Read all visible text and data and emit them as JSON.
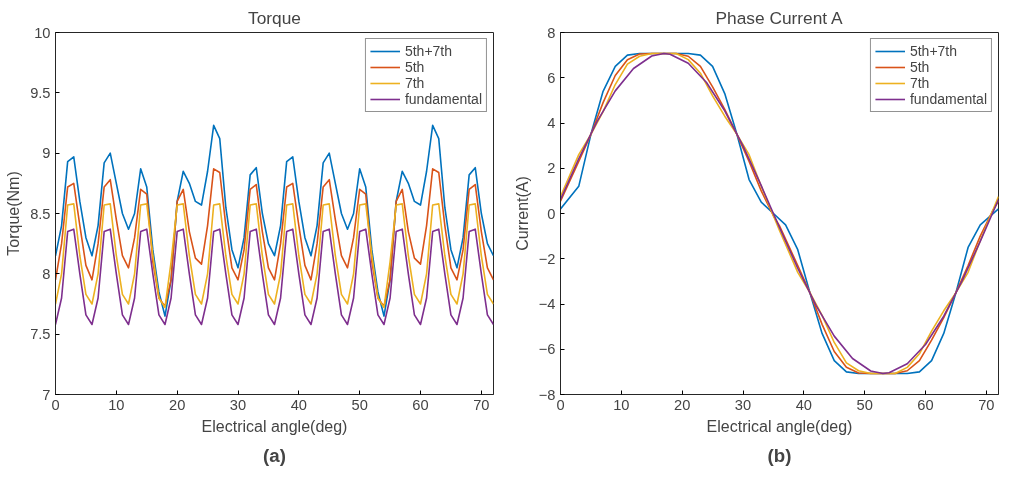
{
  "chart_data": [
    {
      "type": "line",
      "title": "Torque",
      "xlabel": "Electrical angle(deg)",
      "ylabel": "Torque(Nm)",
      "annotations": [
        "(a)"
      ],
      "legend": "top right",
      "xlim": [
        0,
        72
      ],
      "ylim": [
        7,
        10
      ],
      "xticks": [
        0,
        10,
        20,
        30,
        40,
        50,
        60,
        70
      ],
      "yticks": [
        7,
        7.5,
        8,
        8.5,
        9,
        9.5,
        10
      ],
      "x": [
        0,
        1,
        2,
        3,
        4,
        5,
        6,
        7,
        8,
        9,
        10,
        11,
        12,
        13,
        14,
        15,
        16,
        17,
        18,
        19,
        20,
        21,
        22,
        23,
        24,
        25,
        26,
        27,
        28,
        29,
        30,
        31,
        32,
        33,
        34,
        35,
        36,
        37,
        38,
        39,
        40,
        41,
        42,
        43,
        44,
        45,
        46,
        47,
        48,
        49,
        50,
        51,
        52,
        53,
        54,
        55,
        56,
        57,
        58,
        59,
        60,
        61,
        62,
        63,
        64,
        65,
        66,
        67,
        68,
        69,
        70,
        71,
        72
      ],
      "series": [
        {
          "name": "5th+7th",
          "color": "#0072bd",
          "values": [
            8.15,
            8.4,
            8.93,
            8.97,
            8.6,
            8.3,
            8.15,
            8.4,
            8.92,
            9.0,
            8.75,
            8.5,
            8.37,
            8.5,
            8.87,
            8.72,
            8.2,
            7.85,
            7.65,
            7.95,
            8.6,
            8.85,
            8.75,
            8.6,
            8.57,
            8.85,
            9.23,
            9.12,
            8.55,
            8.2,
            8.05,
            8.3,
            8.82,
            8.88,
            8.5,
            8.25,
            8.15,
            8.4,
            8.93,
            8.97,
            8.6,
            8.3,
            8.15,
            8.4,
            8.92,
            9.0,
            8.75,
            8.5,
            8.37,
            8.5,
            8.87,
            8.72,
            8.2,
            7.85,
            7.65,
            7.95,
            8.6,
            8.85,
            8.75,
            8.6,
            8.57,
            8.85,
            9.23,
            9.12,
            8.55,
            8.2,
            8.05,
            8.3,
            8.82,
            8.88,
            8.5,
            8.25,
            8.15
          ]
        },
        {
          "name": "5th",
          "color": "#d95319",
          "values": [
            7.95,
            8.25,
            8.72,
            8.75,
            8.4,
            8.07,
            7.95,
            8.25,
            8.72,
            8.78,
            8.45,
            8.15,
            8.05,
            8.3,
            8.7,
            8.66,
            8.1,
            7.8,
            7.73,
            7.95,
            8.6,
            8.7,
            8.35,
            8.13,
            8.08,
            8.4,
            8.87,
            8.84,
            8.4,
            8.05,
            7.95,
            8.2,
            8.7,
            8.74,
            8.35,
            8.05,
            7.95,
            8.25,
            8.72,
            8.75,
            8.4,
            8.07,
            7.95,
            8.25,
            8.72,
            8.78,
            8.45,
            8.15,
            8.05,
            8.3,
            8.7,
            8.66,
            8.1,
            7.8,
            7.73,
            7.95,
            8.6,
            8.7,
            8.35,
            8.13,
            8.08,
            8.4,
            8.87,
            8.84,
            8.4,
            8.05,
            7.95,
            8.2,
            8.7,
            8.74,
            8.35,
            8.05,
            7.95
          ]
        },
        {
          "name": "7th",
          "color": "#edb120",
          "values": [
            7.75,
            8.0,
            8.57,
            8.58,
            8.15,
            7.83,
            7.75,
            8.0,
            8.57,
            8.58,
            8.15,
            7.83,
            7.75,
            8.0,
            8.57,
            8.58,
            8.15,
            7.8,
            7.72,
            8.1,
            8.57,
            8.58,
            8.15,
            7.83,
            7.75,
            8.0,
            8.57,
            8.58,
            8.15,
            7.83,
            7.75,
            8.0,
            8.57,
            8.58,
            8.15,
            7.83,
            7.75,
            8.0,
            8.57,
            8.58,
            8.15,
            7.83,
            7.75,
            8.0,
            8.57,
            8.58,
            8.15,
            7.83,
            7.75,
            8.0,
            8.57,
            8.58,
            8.15,
            7.8,
            7.72,
            8.1,
            8.57,
            8.58,
            8.15,
            7.83,
            7.75,
            8.0,
            8.57,
            8.58,
            8.15,
            7.83,
            7.75,
            8.0,
            8.57,
            8.58,
            8.15,
            7.83,
            7.75
          ]
        },
        {
          "name": "fundamental",
          "color": "#7e2f8e",
          "values": [
            7.58,
            7.8,
            8.35,
            8.37,
            8.0,
            7.66,
            7.58,
            7.8,
            8.35,
            8.37,
            8.0,
            7.66,
            7.58,
            7.8,
            8.35,
            8.37,
            8.0,
            7.66,
            7.58,
            7.8,
            8.35,
            8.37,
            8.0,
            7.66,
            7.58,
            7.8,
            8.35,
            8.37,
            8.0,
            7.66,
            7.58,
            7.8,
            8.35,
            8.37,
            8.0,
            7.66,
            7.58,
            7.8,
            8.35,
            8.37,
            8.0,
            7.66,
            7.58,
            7.8,
            8.35,
            8.37,
            8.0,
            7.66,
            7.58,
            7.8,
            8.35,
            8.37,
            8.0,
            7.66,
            7.58,
            7.8,
            8.35,
            8.37,
            8.0,
            7.66,
            7.58,
            7.8,
            8.35,
            8.37,
            8.0,
            7.66,
            7.58,
            7.8,
            8.35,
            8.37,
            8.0,
            7.66,
            7.58
          ]
        }
      ]
    },
    {
      "type": "line",
      "title": "Phase Current A",
      "xlabel": "Electrical angle(deg)",
      "ylabel": "Current(A)",
      "annotations": [
        "(b)"
      ],
      "legend": "top right",
      "xlim": [
        0,
        72
      ],
      "ylim": [
        -8,
        8
      ],
      "xticks": [
        0,
        10,
        20,
        30,
        40,
        50,
        60,
        70
      ],
      "yticks": [
        -8,
        -6,
        -4,
        -2,
        0,
        2,
        4,
        6,
        8
      ],
      "series": [
        {
          "name": "5th+7th",
          "color": "#0072bd",
          "x": [
            0,
            3,
            5,
            7,
            9,
            11,
            13,
            17,
            21,
            23,
            25,
            27,
            29,
            31,
            33,
            35,
            37,
            39,
            41,
            43,
            45,
            47,
            49,
            53,
            57,
            59,
            61,
            63,
            65,
            67,
            69,
            72
          ],
          "values": [
            0.2,
            1.2,
            3.5,
            5.4,
            6.5,
            7.0,
            7.07,
            7.07,
            7.07,
            7.0,
            6.5,
            5.3,
            3.5,
            1.5,
            0.5,
            0.0,
            -0.5,
            -1.6,
            -3.5,
            -5.3,
            -6.5,
            -7.0,
            -7.07,
            -7.07,
            -7.07,
            -7.0,
            -6.5,
            -5.3,
            -3.5,
            -1.5,
            -0.5,
            0.2
          ]
        },
        {
          "name": "5th",
          "color": "#d95319",
          "x": [
            0,
            3,
            5,
            7,
            9,
            11,
            13,
            15,
            17,
            19,
            21,
            23,
            25,
            27,
            29,
            31,
            33,
            35,
            36,
            39,
            41,
            43,
            45,
            47,
            49,
            51,
            53,
            55,
            57,
            59,
            61,
            63,
            65,
            67,
            69,
            71,
            72
          ],
          "values": [
            0.55,
            2.3,
            3.5,
            4.9,
            6.1,
            6.8,
            7.05,
            7.07,
            7.07,
            7.07,
            6.95,
            6.5,
            5.6,
            4.6,
            3.5,
            2.3,
            1.0,
            -0.1,
            -0.55,
            -2.3,
            -3.5,
            -4.9,
            -6.1,
            -6.8,
            -7.05,
            -7.07,
            -7.07,
            -7.07,
            -6.95,
            -6.5,
            -5.6,
            -4.6,
            -3.5,
            -2.3,
            -1.0,
            0.1,
            0.55
          ]
        },
        {
          "name": "7th",
          "color": "#edb120",
          "x": [
            0,
            3,
            5,
            7,
            9,
            11,
            13,
            15,
            17,
            19,
            21,
            23,
            25,
            27,
            29,
            31,
            33,
            35,
            36,
            39,
            41,
            43,
            45,
            47,
            49,
            51,
            53,
            55,
            57,
            59,
            61,
            63,
            65,
            67,
            69,
            71,
            72
          ],
          "values": [
            0.75,
            2.6,
            3.5,
            4.5,
            5.7,
            6.6,
            6.95,
            7.07,
            7.07,
            7.07,
            6.8,
            6.2,
            5.2,
            4.3,
            3.5,
            2.6,
            1.2,
            -0.1,
            -0.75,
            -2.6,
            -3.5,
            -4.5,
            -5.7,
            -6.6,
            -6.95,
            -7.07,
            -7.07,
            -7.07,
            -6.8,
            -6.2,
            -5.2,
            -4.3,
            -3.5,
            -2.6,
            -1.2,
            0.1,
            0.75
          ]
        },
        {
          "name": "fundamental",
          "color": "#7e2f8e",
          "x": [
            0,
            3,
            6,
            9,
            12,
            15,
            17,
            18,
            21,
            24,
            27,
            30,
            33,
            36,
            39,
            42,
            45,
            48,
            51,
            53,
            54,
            57,
            60,
            63,
            66,
            69,
            72
          ],
          "values": [
            0.62,
            2.42,
            4.06,
            5.42,
            6.41,
            6.96,
            7.07,
            7.04,
            6.64,
            5.79,
            4.54,
            2.99,
            1.23,
            -0.62,
            -2.42,
            -4.06,
            -5.42,
            -6.41,
            -6.96,
            -7.07,
            -7.04,
            -6.64,
            -5.79,
            -4.54,
            -2.99,
            -1.23,
            0.62
          ]
        }
      ]
    }
  ]
}
